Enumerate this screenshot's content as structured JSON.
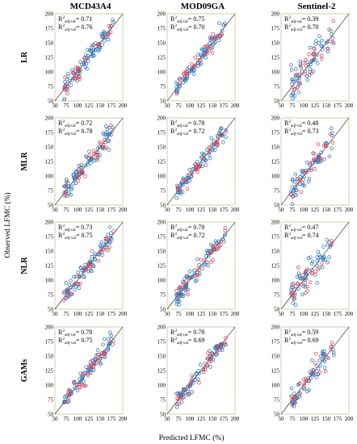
{
  "column_titles": [
    "MCD43A4",
    "MOD09GA",
    "Sentinel-2"
  ],
  "row_labels": [
    "LR",
    "MLR",
    "NLR",
    "GAMs"
  ],
  "xlabel": "Predicted LFMC (%)",
  "ylabel": "Observed LFMC (%)",
  "r2_prefix": "R",
  "r2_power": "2",
  "r2_cal_sub": "adj-cal",
  "r2_val_sub": "adj-val",
  "r2_eq": "= ",
  "colors": {
    "calibration": "#2e75b6",
    "validation": "#e8424e",
    "line": "#000000",
    "frame": "#c9c39a"
  },
  "chart_data": {
    "type": "scatter",
    "layout": "4 rows x 3 columns grid",
    "xlim": [
      50,
      200
    ],
    "ylim": [
      50,
      200
    ],
    "xticks": [
      50,
      75,
      100,
      125,
      150,
      175,
      200
    ],
    "yticks": [
      50,
      75,
      100,
      125,
      150,
      175,
      200
    ],
    "reference_line": "1:1",
    "grid": false,
    "panels": [
      {
        "row": "LR",
        "col": "MCD43A4",
        "r2_cal": "0.71",
        "r2_val": "0.76",
        "seed": 11
      },
      {
        "row": "LR",
        "col": "MOD09GA",
        "r2_cal": "0.75",
        "r2_val": "0.70",
        "seed": 12
      },
      {
        "row": "LR",
        "col": "Sentinel-2",
        "r2_cal": "0.39",
        "r2_val": "0.70",
        "seed": 13
      },
      {
        "row": "MLR",
        "col": "MCD43A4",
        "r2_cal": "0.72",
        "r2_val": "0.78",
        "seed": 21
      },
      {
        "row": "MLR",
        "col": "MOD09GA",
        "r2_cal": "0.78",
        "r2_val": "0.72",
        "seed": 22
      },
      {
        "row": "MLR",
        "col": "Sentinel-2",
        "r2_cal": "0.48",
        "r2_val": "0.73",
        "seed": 23
      },
      {
        "row": "NLR",
        "col": "MCD43A4",
        "r2_cal": "0.73",
        "r2_val": "0.75",
        "seed": 31
      },
      {
        "row": "NLR",
        "col": "MOD09GA",
        "r2_cal": "0.78",
        "r2_val": "0.72",
        "seed": 32
      },
      {
        "row": "NLR",
        "col": "Sentinel-2",
        "r2_cal": "0.47",
        "r2_val": "0.74",
        "seed": 33
      },
      {
        "row": "GAMs",
        "col": "MCD43A4",
        "r2_cal": "0.78",
        "r2_val": "0.75",
        "seed": 41
      },
      {
        "row": "GAMs",
        "col": "MOD09GA",
        "r2_cal": "0.78",
        "r2_val": "0.69",
        "seed": 42
      },
      {
        "row": "GAMs",
        "col": "Sentinel-2",
        "r2_cal": "0.59",
        "r2_val": "0.69",
        "seed": 43
      }
    ]
  }
}
